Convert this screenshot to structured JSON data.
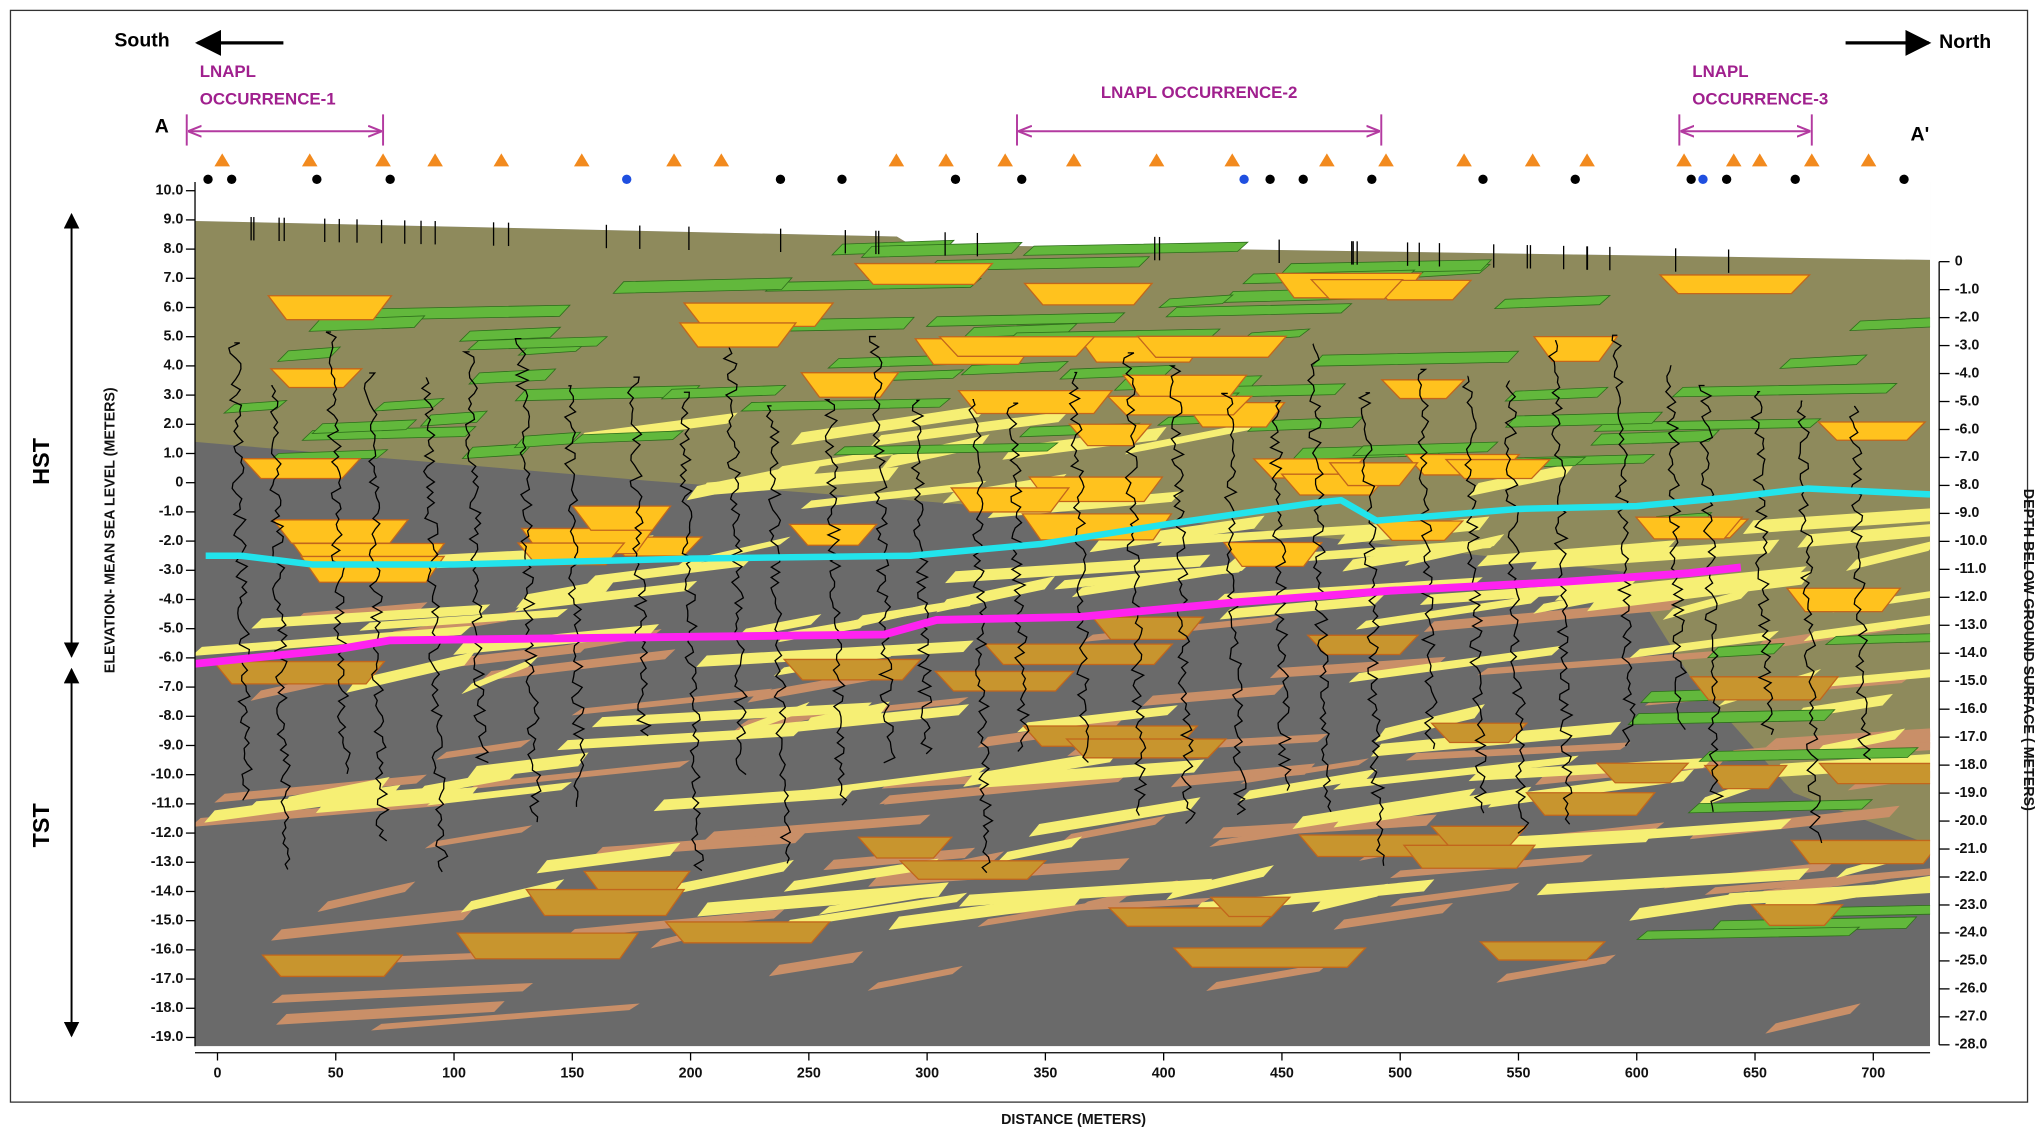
{
  "chart_data": {
    "type": "cross-section",
    "direction_left": "South",
    "direction_right": "North",
    "section_start": "A",
    "section_end": "A'",
    "xlabel": "DISTANCE (METERS)",
    "ylabel": "ELEVATION- MEAN SEA LEVEL (METERS)",
    "y2label": "DEPTH BELOW GROUND SURFACE ( METERS)",
    "sequence_labels": [
      "HST",
      "TST"
    ],
    "lnapl_occurrences": [
      {
        "lines": [
          "LNAPL",
          "OCCURRENCE-1"
        ],
        "x": [
          -13,
          70
        ]
      },
      {
        "lines": [
          "LNAPL OCCURRENCE-2"
        ],
        "x": [
          338,
          492
        ]
      },
      {
        "lines": [
          "LNAPL",
          "OCCURRENCE-3"
        ],
        "x": [
          618,
          674
        ]
      }
    ],
    "xlim": [
      -9.5,
      724
    ],
    "xticks": [
      0,
      50,
      100,
      150,
      200,
      250,
      300,
      350,
      400,
      450,
      500,
      550,
      600,
      650,
      700
    ],
    "ylim": [
      -19.3,
      10.3
    ],
    "yticks": [
      {
        "value": 10,
        "label": "10.0"
      },
      {
        "value": 9,
        "label": "9.0"
      },
      {
        "value": 8,
        "label": "8.0"
      },
      {
        "value": 7,
        "label": "7.0"
      },
      {
        "value": 6,
        "label": "6.0"
      },
      {
        "value": 5,
        "label": "5.0"
      },
      {
        "value": 4,
        "label": "4.0"
      },
      {
        "value": 3,
        "label": "3.0"
      },
      {
        "value": 2,
        "label": "2.0"
      },
      {
        "value": 1,
        "label": "1.0"
      },
      0,
      {
        "value": -1,
        "label": "-1.0"
      },
      {
        "value": -2,
        "label": "-2.0"
      },
      {
        "value": -3,
        "label": "-3.0"
      },
      {
        "value": -4,
        "label": "-4.0"
      },
      {
        "value": -5,
        "label": "-5.0"
      },
      {
        "value": -6,
        "label": "-6.0"
      },
      {
        "value": -7,
        "label": "-7.0"
      },
      {
        "value": -8,
        "label": "-8.0"
      },
      {
        "value": -9,
        "label": "-9.0"
      },
      {
        "value": -10,
        "label": "-10.0"
      },
      {
        "value": -11,
        "label": "-11.0"
      },
      {
        "value": -12,
        "label": "-12.0"
      },
      {
        "value": -13,
        "label": "-13.0"
      },
      {
        "value": -14,
        "label": "-14.0"
      },
      {
        "value": -15,
        "label": "-15.0"
      },
      {
        "value": -16,
        "label": "-16.0"
      },
      {
        "value": -17,
        "label": "-17.0"
      },
      {
        "value": -18,
        "label": "-18.0"
      },
      {
        "value": -19,
        "label": "-19.0"
      }
    ],
    "y2lim": [
      -28.05,
      2.85
    ],
    "y2ticks": [
      0,
      {
        "value": -1,
        "label": "-1.0"
      },
      {
        "value": -2,
        "label": "-2.0"
      },
      {
        "value": -3,
        "label": "-3.0"
      },
      {
        "value": -4,
        "label": "-4.0"
      },
      {
        "value": -5,
        "label": "-5.0"
      },
      {
        "value": -6,
        "label": "-6.0"
      },
      {
        "value": -7,
        "label": "-7.0"
      },
      {
        "value": -8,
        "label": "-8.0"
      },
      {
        "value": -9,
        "label": "-9.0"
      },
      {
        "value": -10,
        "label": "-10.0"
      },
      {
        "value": -11,
        "label": "-11.0"
      },
      {
        "value": -12,
        "label": "-12.0"
      },
      {
        "value": -13,
        "label": "-13.0"
      },
      {
        "value": -14,
        "label": "-14.0"
      },
      {
        "value": -15,
        "label": "-15.0"
      },
      {
        "value": -16,
        "label": "-16.0"
      },
      {
        "value": -17,
        "label": "-17.0"
      },
      {
        "value": -18,
        "label": "-18.0"
      },
      {
        "value": -19,
        "label": "-19.0"
      },
      {
        "value": -20,
        "label": "-20.0"
      },
      {
        "value": -21,
        "label": "-21.0"
      },
      {
        "value": -22,
        "label": "-22.0"
      },
      {
        "value": -23,
        "label": "-23.0"
      },
      {
        "value": -24,
        "label": "-24.0"
      },
      {
        "value": -25,
        "label": "-25.0"
      },
      {
        "value": -26,
        "label": "-26.0"
      },
      {
        "value": -27,
        "label": "-27.0"
      },
      {
        "value": -28,
        "label": "-28.0"
      }
    ],
    "series": [
      {
        "color": "#22e4ec",
        "width": 5,
        "x": [
          -5,
          10,
          40,
          100,
          200,
          293,
          348,
          403,
          463,
          475,
          490,
          550,
          600,
          640,
          672,
          724
        ],
        "values": [
          -2.5,
          -2.5,
          -2.8,
          -2.8,
          -2.6,
          -2.5,
          -2.1,
          -1.4,
          -0.7,
          -0.6,
          -1.3,
          -0.9,
          -0.8,
          -0.5,
          -0.2,
          -0.4
        ]
      },
      {
        "color": "#ff22f0",
        "width": 6,
        "x": [
          -9.5,
          51,
          73,
          282,
          304,
          364,
          430,
          496,
          568,
          622,
          644
        ],
        "values": [
          -6.2,
          -5.7,
          -5.4,
          -5.2,
          -4.7,
          -4.6,
          -4.1,
          -3.7,
          -3.4,
          -3.1,
          -2.9
        ]
      }
    ],
    "well_markers": [
      {
        "shape": "triangle",
        "color": "#f28a1e",
        "x": [
          2,
          39,
          70,
          92,
          120,
          154,
          193,
          213,
          287,
          308,
          333,
          362,
          397,
          429,
          469,
          494,
          527,
          556,
          579,
          620,
          641,
          652,
          674,
          698
        ]
      },
      {
        "shape": "circle",
        "color": "#000000",
        "x": [
          -4,
          6,
          42,
          73,
          238,
          264,
          312,
          340,
          445,
          459,
          488,
          535,
          574,
          623,
          638,
          667,
          713
        ]
      },
      {
        "shape": "circle",
        "color": "#1f4fe0",
        "x": [
          173,
          434,
          628
        ]
      }
    ]
  }
}
